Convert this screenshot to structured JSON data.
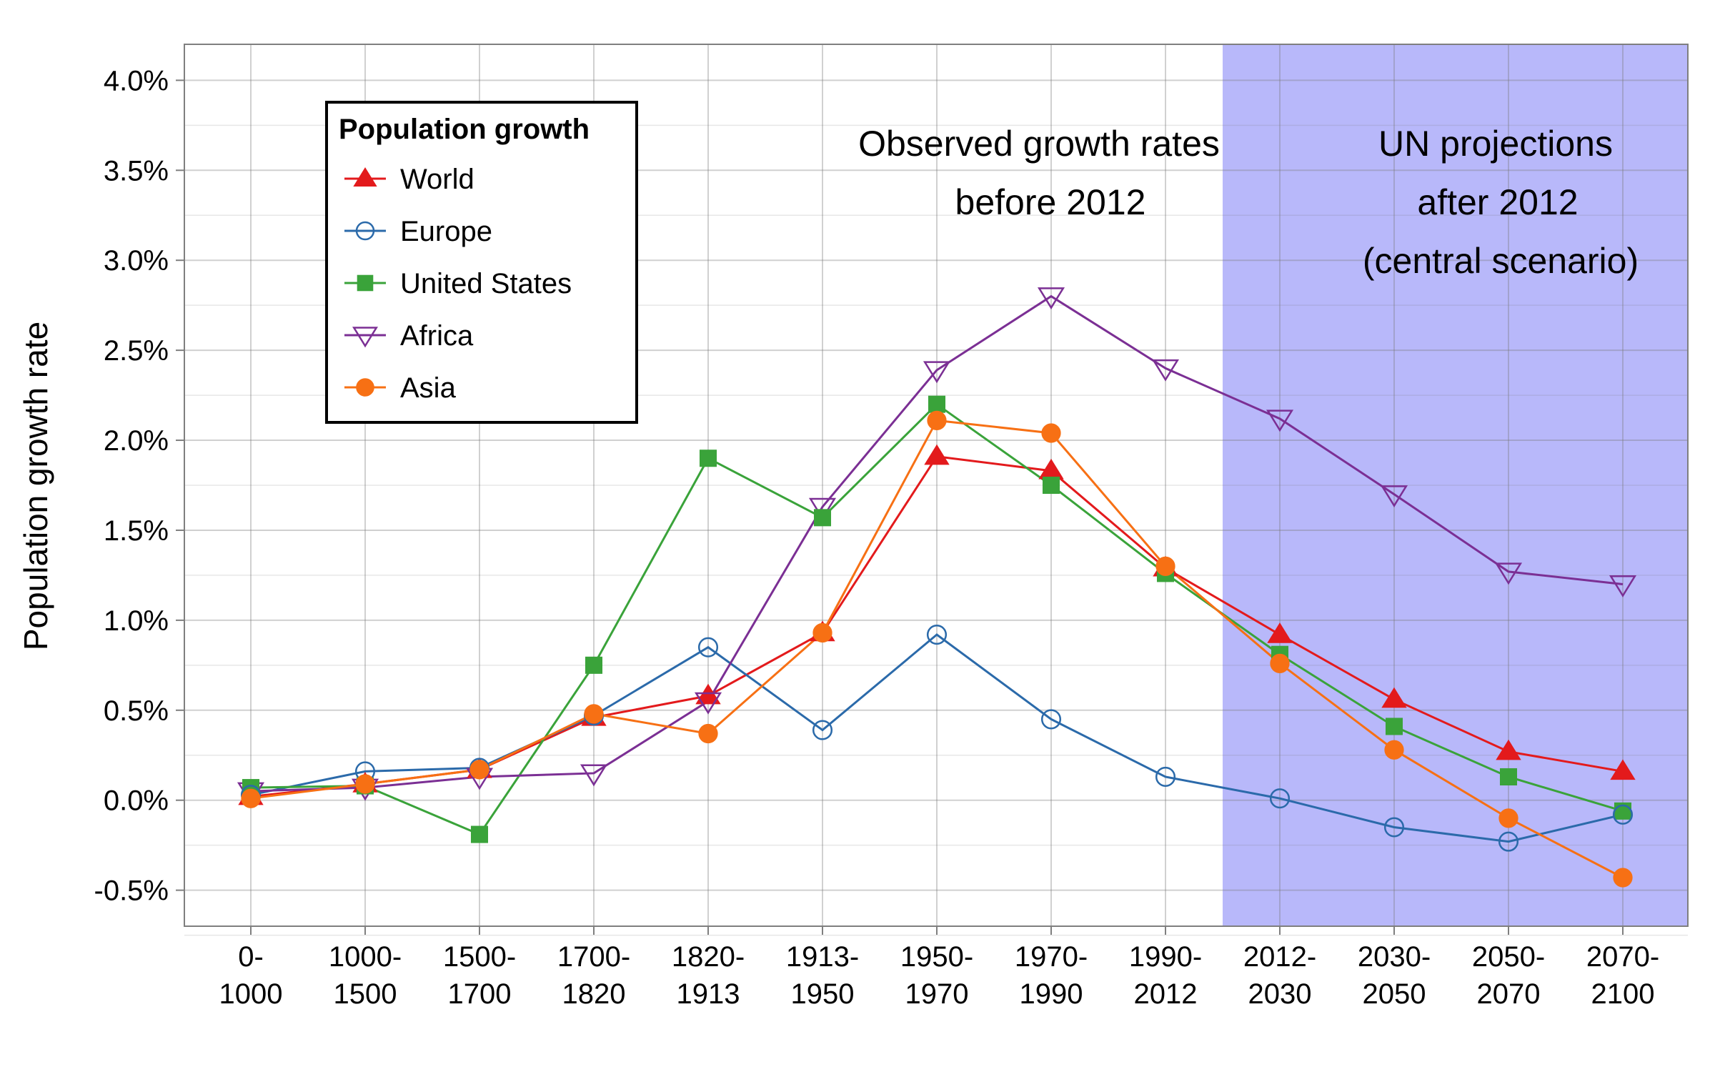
{
  "chart_data": {
    "type": "line",
    "ylabel": "Population growth rate",
    "xlabel": "",
    "ylim": [
      -0.7,
      4.2
    ],
    "yticks": [
      -0.5,
      0.0,
      0.5,
      1.0,
      1.5,
      2.0,
      2.5,
      3.0,
      3.5,
      4.0
    ],
    "ytick_labels": [
      "-0.5%",
      "0.0%",
      "0.5%",
      "1.0%",
      "1.5%",
      "2.0%",
      "2.5%",
      "3.0%",
      "3.5%",
      "4.0%"
    ],
    "grid": true,
    "categories": [
      [
        "0-",
        "1000"
      ],
      [
        "1000-",
        "1500"
      ],
      [
        "1500-",
        "1700"
      ],
      [
        "1700-",
        "1820"
      ],
      [
        "1820-",
        "1913"
      ],
      [
        "1913-",
        "1950"
      ],
      [
        "1950-",
        "1970"
      ],
      [
        "1970-",
        "1990"
      ],
      [
        "1990-",
        "2012"
      ],
      [
        "2012-",
        "2030"
      ],
      [
        "2030-",
        "2050"
      ],
      [
        "2050-",
        "2070"
      ],
      [
        "2070-",
        "2100"
      ]
    ],
    "projection_region": {
      "from_index": 9,
      "to_index": 12,
      "color": "#b8b8fa"
    },
    "annotations": {
      "observed": [
        "Observed growth rates",
        "before 2012"
      ],
      "projected": [
        "UN projections",
        "after 2012",
        "(central scenario)"
      ]
    },
    "legend": {
      "title": "Population growth",
      "position": "top-left"
    },
    "series": [
      {
        "name": "World",
        "color": "#e31a1c",
        "marker": "triangle-up-filled",
        "values": [
          0.02,
          0.09,
          0.17,
          0.46,
          0.58,
          0.93,
          1.91,
          1.83,
          1.29,
          0.92,
          0.56,
          0.27,
          0.16
        ]
      },
      {
        "name": "Europe",
        "color": "#2b6aaa",
        "marker": "circle-open",
        "values": [
          0.03,
          0.16,
          0.18,
          0.47,
          0.85,
          0.39,
          0.92,
          0.45,
          0.13,
          0.01,
          -0.15,
          -0.23,
          -0.08
        ]
      },
      {
        "name": "United States",
        "color": "#3aa33a",
        "marker": "square-filled",
        "values": [
          0.07,
          0.08,
          -0.19,
          0.75,
          1.9,
          1.57,
          2.2,
          1.75,
          1.26,
          0.81,
          0.41,
          0.13,
          -0.06
        ]
      },
      {
        "name": "Africa",
        "color": "#7b2f94",
        "marker": "triangle-down-open",
        "values": [
          0.05,
          0.07,
          0.13,
          0.15,
          0.55,
          1.63,
          2.39,
          2.8,
          2.4,
          2.12,
          1.7,
          1.27,
          1.2
        ]
      },
      {
        "name": "Asia",
        "color": "#f77014",
        "marker": "circle-filled",
        "values": [
          0.01,
          0.09,
          0.17,
          0.48,
          0.37,
          0.93,
          2.11,
          2.04,
          1.3,
          0.76,
          0.28,
          -0.1,
          -0.43
        ]
      }
    ]
  }
}
